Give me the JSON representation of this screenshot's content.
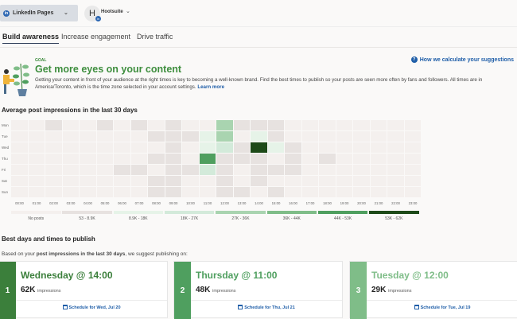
{
  "topbar": {
    "pages_label": "LinkedIn Pages",
    "account_name": "Hootsuite",
    "account_initial": "H"
  },
  "tabs": [
    {
      "label": "Build awareness",
      "active": true
    },
    {
      "label": "Increase engagement"
    },
    {
      "label": "Drive traffic"
    }
  ],
  "goal": {
    "label": "GOAL",
    "title": "Get more eyes on your content",
    "description": "Getting your content in front of your audience at the right times is key to becoming a well-known brand. Find the best times to publish so your posts are seen more often by fans and followers. All times are in America/Toronto, which is the time zone selected in your account settings.",
    "learn_more": "Learn more",
    "how_link": "How we calculate your suggestions"
  },
  "heatmap": {
    "title": "Average post impressions in the last 30 days",
    "days": [
      "Mon",
      "Tue",
      "Wed",
      "Thu",
      "Fri",
      "Sat",
      "Sun"
    ],
    "hours": [
      "00:00",
      "01:00",
      "02:00",
      "03:00",
      "04:00",
      "05:00",
      "06:00",
      "07:00",
      "08:00",
      "09:00",
      "10:00",
      "11:00",
      "12:00",
      "13:00",
      "14:00",
      "15:00",
      "16:00",
      "17:00",
      "18:00",
      "19:00",
      "20:00",
      "21:00",
      "22:00",
      "23:00"
    ],
    "legend": [
      "No posts",
      "53 - 8.9K",
      "8.9K - 18K",
      "18K - 27K",
      "27K - 36K",
      "36K - 44K",
      "44K - 53K",
      "53K - 62K"
    ],
    "legend_colors": [
      "#f4f0ee",
      "#e7e2e0",
      "#e6f3e8",
      "#d3eada",
      "#a9d4b0",
      "#7fbd88",
      "#4f9f5f",
      "#1d4a18"
    ],
    "bucket_matrix": [
      [
        0,
        0,
        1,
        0,
        0,
        1,
        0,
        1,
        0,
        1,
        0,
        0,
        4,
        1,
        1,
        1,
        0,
        0,
        0,
        0,
        0,
        0,
        0,
        0
      ],
      [
        0,
        0,
        0,
        0,
        0,
        0,
        0,
        0,
        1,
        1,
        1,
        2,
        4,
        0,
        2,
        1,
        0,
        0,
        0,
        0,
        0,
        0,
        0,
        0
      ],
      [
        0,
        0,
        0,
        0,
        0,
        0,
        0,
        0,
        0,
        1,
        0,
        2,
        3,
        1,
        7,
        2,
        1,
        0,
        0,
        0,
        0,
        0,
        0,
        0
      ],
      [
        0,
        0,
        0,
        0,
        0,
        0,
        0,
        0,
        1,
        1,
        0,
        6,
        1,
        1,
        1,
        0,
        1,
        0,
        1,
        0,
        0,
        0,
        0,
        0
      ],
      [
        0,
        0,
        0,
        0,
        0,
        0,
        1,
        1,
        0,
        1,
        1,
        3,
        1,
        0,
        1,
        1,
        1,
        0,
        0,
        0,
        0,
        0,
        0,
        0
      ],
      [
        0,
        0,
        0,
        0,
        0,
        0,
        0,
        0,
        1,
        1,
        0,
        0,
        1,
        0,
        1,
        0,
        0,
        0,
        0,
        0,
        0,
        0,
        0,
        0
      ],
      [
        0,
        0,
        0,
        0,
        0,
        0,
        0,
        0,
        1,
        1,
        0,
        0,
        1,
        1,
        0,
        1,
        0,
        0,
        0,
        0,
        0,
        0,
        0,
        0
      ]
    ]
  },
  "best": {
    "title": "Best days and times to publish",
    "sub_prefix": "Based on your ",
    "sub_bold": "post impressions in the last 30 days",
    "sub_suffix": ", we suggest publishing on:",
    "impressions_label": "impressions",
    "cards": [
      {
        "rank": "1",
        "title": "Wednesday @ 14:00",
        "value": "62K",
        "schedule": "Schedule for Wed, Jul 20",
        "color": "#3b7f3b"
      },
      {
        "rank": "2",
        "title": "Thursday @ 11:00",
        "value": "48K",
        "schedule": "Schedule for Thu, Jul 21",
        "color": "#4f9f5f"
      },
      {
        "rank": "3",
        "title": "Tuesday @ 12:00",
        "value": "29K",
        "schedule": "Schedule for Tue, Jul 19",
        "color": "#7fbd88"
      }
    ]
  }
}
